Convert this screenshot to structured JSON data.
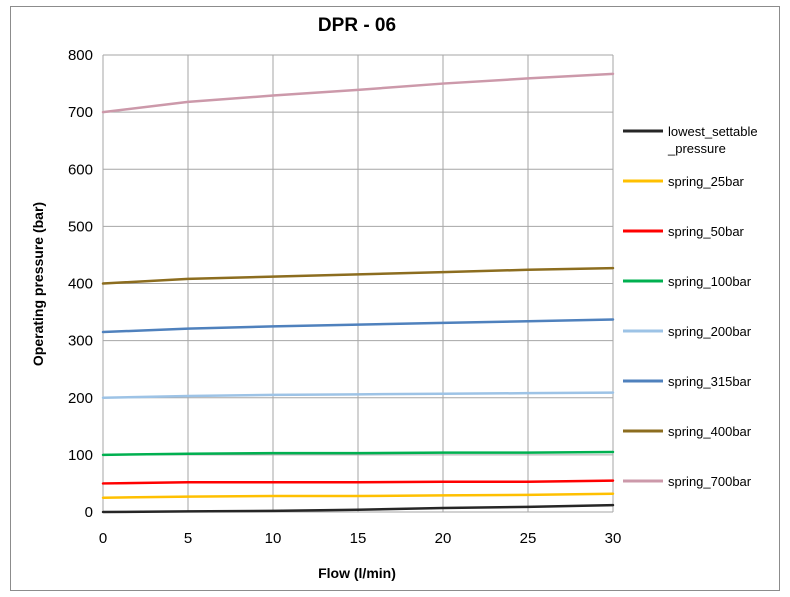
{
  "chart_data": {
    "type": "line",
    "title": "DPR - 06",
    "xlabel": "Flow (l/min)",
    "ylabel": "Operating pressure (bar)",
    "xlim": [
      0,
      30
    ],
    "ylim": [
      0,
      800
    ],
    "xticks": [
      0,
      5,
      10,
      15,
      20,
      25,
      30
    ],
    "yticks": [
      0,
      100,
      200,
      300,
      400,
      500,
      600,
      700,
      800
    ],
    "grid": true,
    "legend_position": "right",
    "x": [
      0,
      5,
      10,
      15,
      20,
      25,
      30
    ],
    "series": [
      {
        "name": "lowest_settable _pressure",
        "legend_lines": [
          "lowest_settable",
          "_pressure"
        ],
        "color": "#262626",
        "values": [
          0,
          1,
          2,
          4,
          7,
          9,
          12
        ]
      },
      {
        "name": "spring_25bar",
        "legend_lines": [
          "spring_25bar"
        ],
        "color": "#ffc000",
        "values": [
          25,
          27,
          28,
          28,
          29,
          30,
          32
        ]
      },
      {
        "name": "spring_50bar",
        "legend_lines": [
          "spring_50bar"
        ],
        "color": "#ff0000",
        "values": [
          50,
          52,
          52,
          52,
          53,
          53,
          55
        ]
      },
      {
        "name": "spring_100bar",
        "legend_lines": [
          "spring_100bar"
        ],
        "color": "#00b050",
        "values": [
          100,
          102,
          103,
          103,
          104,
          104,
          105
        ]
      },
      {
        "name": "spring_200bar",
        "legend_lines": [
          "spring_200bar"
        ],
        "color": "#9dc3e6",
        "values": [
          200,
          203,
          205,
          206,
          207,
          208,
          209
        ]
      },
      {
        "name": "spring_315bar",
        "legend_lines": [
          "spring_315bar"
        ],
        "color": "#4f81bd",
        "values": [
          315,
          321,
          325,
          328,
          331,
          334,
          337
        ]
      },
      {
        "name": "spring_400bar",
        "legend_lines": [
          "spring_400bar"
        ],
        "color": "#8c6d1f",
        "values": [
          400,
          408,
          412,
          416,
          420,
          424,
          427
        ]
      },
      {
        "name": "spring_700bar",
        "legend_lines": [
          "spring_700bar"
        ],
        "color": "#cc99aa",
        "values": [
          700,
          718,
          729,
          739,
          750,
          759,
          767
        ]
      }
    ]
  }
}
